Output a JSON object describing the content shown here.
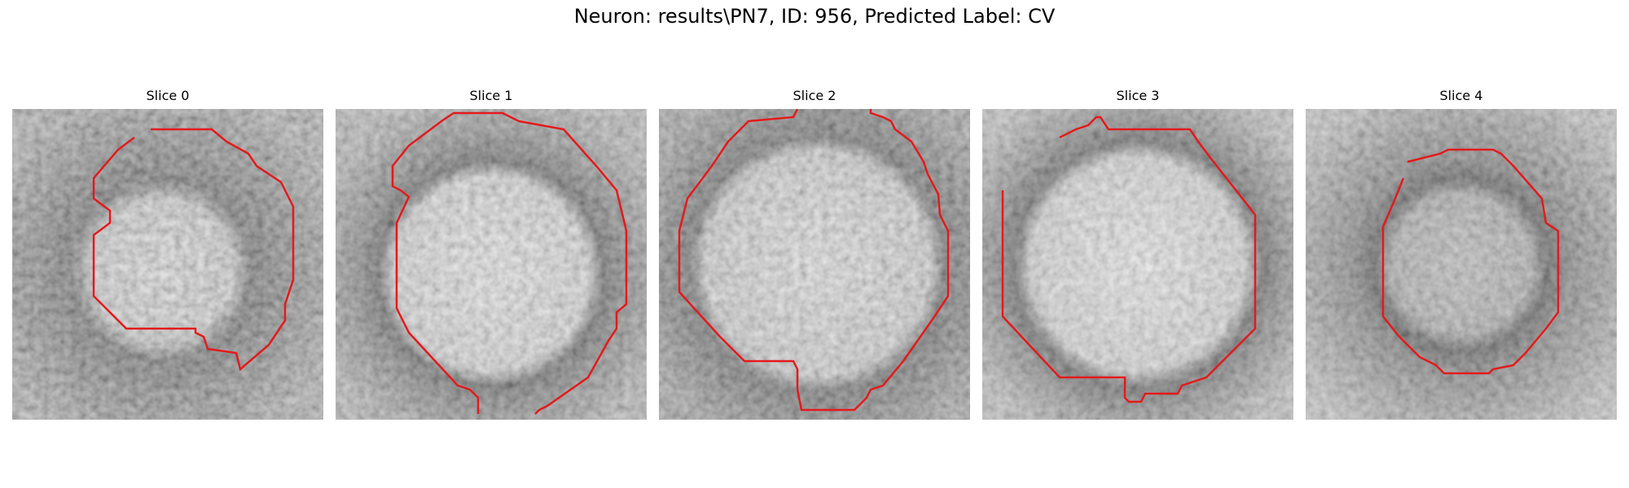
{
  "figure": {
    "title": "Neuron: results\\PN7, ID: 956, Predicted Label: CV",
    "contour_color": "#e31a1c",
    "colormap": "gray",
    "panels": [
      {
        "title": "Slice 0"
      },
      {
        "title": "Slice 1"
      },
      {
        "title": "Slice 2"
      },
      {
        "title": "Slice 3"
      },
      {
        "title": "Slice 4"
      }
    ]
  }
}
